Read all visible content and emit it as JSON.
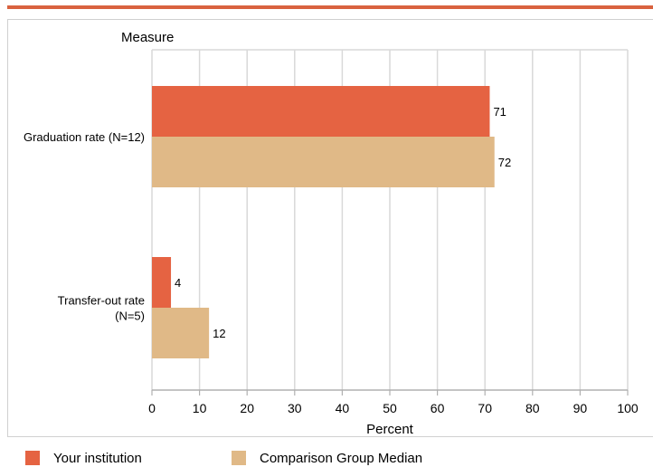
{
  "colors": {
    "accent_rule": "#d9623f",
    "grid": "#d9d9d9",
    "axis": "#b0b0b0"
  },
  "chart_data": {
    "type": "bar",
    "orientation": "horizontal",
    "title": "",
    "category_axis_title": "Measure",
    "xlabel": "Percent",
    "xlim": [
      0,
      100
    ],
    "xticks": [
      0,
      10,
      20,
      30,
      40,
      50,
      60,
      70,
      80,
      90,
      100
    ],
    "grid": true,
    "legend_position": "bottom",
    "categories": [
      {
        "lines": [
          "Graduation rate (N=12)"
        ]
      },
      {
        "lines": [
          "Transfer-out rate",
          "(N=5)"
        ]
      }
    ],
    "series": [
      {
        "name": "Your institution",
        "color": "#e56342",
        "values": [
          71,
          4
        ]
      },
      {
        "name": "Comparison Group Median",
        "color": "#e0b987",
        "values": [
          72,
          12
        ]
      }
    ]
  }
}
